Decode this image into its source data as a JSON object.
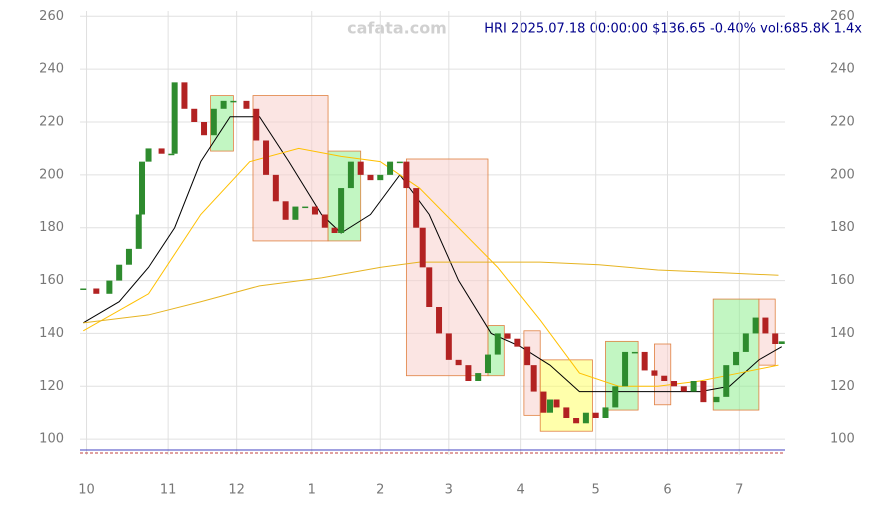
{
  "chart_data": {
    "type": "candlestick",
    "title": "HRI 2025.07.18 00:00:00 $136.65 -0.40% vol:685.8K 1.4x",
    "watermark": "cafata.com",
    "up_color": "#2e8b2e",
    "down_color": "#b22222",
    "xlim": [
      0,
      216
    ],
    "ylim": [
      94,
      262
    ],
    "xticks": [
      {
        "value": 2,
        "label": "10"
      },
      {
        "value": 27,
        "label": "11"
      },
      {
        "value": 48,
        "label": "12"
      },
      {
        "value": 71,
        "label": "1"
      },
      {
        "value": 92,
        "label": "2"
      },
      {
        "value": 113,
        "label": "3"
      },
      {
        "value": 135,
        "label": "4"
      },
      {
        "value": 158,
        "label": "5"
      },
      {
        "value": 180,
        "label": "6"
      },
      {
        "value": 202,
        "label": "7"
      }
    ],
    "yticks": [
      100,
      120,
      140,
      160,
      180,
      200,
      220,
      240,
      260
    ],
    "grid": true,
    "x": [
      1,
      5,
      9,
      12,
      15,
      18,
      19,
      21,
      25,
      28,
      29,
      32,
      35,
      38,
      41,
      44,
      47,
      51,
      54,
      57,
      60,
      63,
      66,
      69,
      72,
      75,
      78,
      80,
      83,
      86,
      89,
      92,
      95,
      98,
      100,
      103,
      105,
      107,
      110,
      113,
      116,
      119,
      122,
      125,
      128,
      131,
      134,
      137,
      139,
      142,
      144,
      146,
      149,
      152,
      155,
      158,
      161,
      164,
      167,
      170,
      173,
      176,
      179,
      182,
      185,
      188,
      191,
      195,
      198,
      201,
      204,
      207,
      210,
      213,
      215
    ],
    "values": [
      157,
      155,
      160,
      166,
      172,
      185,
      205,
      210,
      208,
      208,
      235,
      225,
      220,
      215,
      225,
      228,
      228,
      225,
      213,
      200,
      190,
      183,
      188,
      188,
      185,
      180,
      178,
      195,
      205,
      200,
      198,
      200,
      205,
      205,
      195,
      180,
      165,
      150,
      140,
      130,
      128,
      122,
      125,
      132,
      140,
      138,
      135,
      128,
      118,
      110,
      115,
      112,
      108,
      106,
      110,
      108,
      112,
      120,
      133,
      133,
      126,
      124,
      122,
      120,
      118,
      122,
      114,
      116,
      128,
      133,
      140,
      146,
      140,
      136,
      137
    ],
    "series": [
      {
        "color": "#000000",
        "x": [
          1,
          12,
          21,
          29,
          37,
          46,
          55,
          64,
          74,
          80,
          89,
          98,
          107,
          116,
          126,
          135,
          144,
          153,
          162,
          171,
          181,
          190,
          199,
          208,
          215
        ],
        "values": [
          144,
          152,
          165,
          180,
          205,
          222,
          222,
          205,
          185,
          178,
          185,
          200,
          185,
          160,
          140,
          135,
          128,
          118,
          118,
          118,
          118,
          118,
          120,
          130,
          135
        ]
      },
      {
        "color": "#ffc000",
        "x": [
          1,
          21,
          37,
          52,
          67,
          80,
          92,
          104,
          116,
          128,
          141,
          153,
          165,
          177,
          190,
          202,
          214
        ],
        "values": [
          141,
          155,
          185,
          205,
          210,
          207,
          205,
          195,
          180,
          165,
          145,
          125,
          120,
          120,
          122,
          125,
          128
        ]
      },
      {
        "color": "#e6b422",
        "x": [
          1,
          21,
          37,
          55,
          74,
          92,
          104,
          123,
          141,
          159,
          177,
          196,
          214
        ],
        "values": [
          144,
          147,
          152,
          158,
          161,
          165,
          167,
          167,
          167,
          166,
          164,
          163,
          162
        ]
      }
    ],
    "zones": [
      {
        "x": [
          40,
          47
        ],
        "y": [
          209,
          230
        ],
        "color": "#90ee90"
      },
      {
        "x": [
          53,
          76
        ],
        "y": [
          175,
          230
        ],
        "color": "#f8d0cc"
      },
      {
        "x": [
          76,
          86
        ],
        "y": [
          175,
          209
        ],
        "color": "#90ee90"
      },
      {
        "x": [
          100,
          125
        ],
        "y": [
          124,
          206
        ],
        "color": "#f8d0cc"
      },
      {
        "x": [
          125,
          130
        ],
        "y": [
          124,
          143
        ],
        "color": "#90ee90"
      },
      {
        "x": [
          136,
          141
        ],
        "y": [
          109,
          141
        ],
        "color": "#f8d0cc"
      },
      {
        "x": [
          141,
          157
        ],
        "y": [
          103,
          130
        ],
        "color": "#ffff66"
      },
      {
        "x": [
          161,
          171
        ],
        "y": [
          111,
          137
        ],
        "color": "#90ee90"
      },
      {
        "x": [
          176,
          181
        ],
        "y": [
          113,
          136
        ],
        "color": "#f8d0cc"
      },
      {
        "x": [
          194,
          208
        ],
        "y": [
          111,
          153
        ],
        "color": "#90ee90"
      },
      {
        "x": [
          208,
          213
        ],
        "y": [
          128,
          153
        ],
        "color": "#f8d0cc"
      }
    ]
  }
}
